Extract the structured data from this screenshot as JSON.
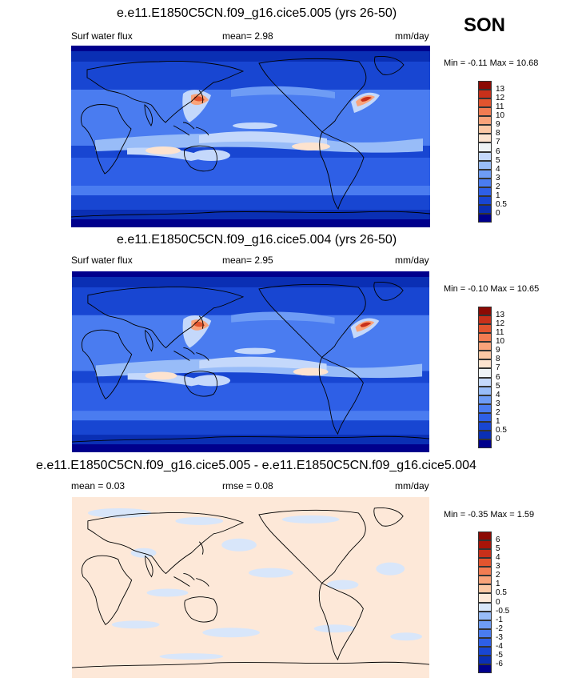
{
  "season": "SON",
  "panels": [
    {
      "title": "e.e11.E1850C5CN.f09_g16.cice5.005 (yrs 26-50)",
      "left_label": "Surf water flux",
      "mid_label": "mean=  2.98",
      "units": "mm/day",
      "minmax": "Min =  -0.11 Max =  10.68"
    },
    {
      "title": "e.e11.E1850C5CN.f09_g16.cice5.004 (yrs 26-50)",
      "left_label": "Surf water flux",
      "mid_label": "mean=  2.95",
      "units": "mm/day",
      "minmax": "Min =  -0.10 Max =  10.65"
    },
    {
      "title": "e.e11.E1850C5CN.f09_g16.cice5.005 - e.e11.E1850C5CN.f09_g16.cice5.004",
      "left_label": "mean =  0.03",
      "mid_label": "rmse =  0.08",
      "units": "mm/day",
      "minmax": "Min =  -0.35 Max =  1.59"
    }
  ],
  "chart_data": [
    {
      "type": "heatmap",
      "title": "e.e11.E1850C5CN.f09_g16.cice5.005 (yrs 26-50)",
      "variable": "Surf water flux",
      "units": "mm/day",
      "mean": 2.98,
      "min": -0.11,
      "max": 10.68,
      "colorbar": {
        "levels": [
          "0",
          "0.5",
          "1",
          "2",
          "3",
          "4",
          "5",
          "6",
          "7",
          "8",
          "9",
          "10",
          "11",
          "12",
          "13"
        ],
        "colors": [
          "#00008c",
          "#0a2fb4",
          "#1846d2",
          "#2e5fe6",
          "#4a7cf0",
          "#6e9cf5",
          "#98bcf8",
          "#c4d8fb",
          "#eef3f6",
          "#fde3cf",
          "#fcc8a5",
          "#f9a37a",
          "#f27c52",
          "#e2542e",
          "#c8301a",
          "#8c0a04"
        ]
      }
    },
    {
      "type": "heatmap",
      "title": "e.e11.E1850C5CN.f09_g16.cice5.004 (yrs 26-50)",
      "variable": "Surf water flux",
      "units": "mm/day",
      "mean": 2.95,
      "min": -0.1,
      "max": 10.65,
      "colorbar": {
        "levels": [
          "0",
          "0.5",
          "1",
          "2",
          "3",
          "4",
          "5",
          "6",
          "7",
          "8",
          "9",
          "10",
          "11",
          "12",
          "13"
        ],
        "colors": [
          "#00008c",
          "#0a2fb4",
          "#1846d2",
          "#2e5fe6",
          "#4a7cf0",
          "#6e9cf5",
          "#98bcf8",
          "#c4d8fb",
          "#eef3f6",
          "#fde3cf",
          "#fcc8a5",
          "#f9a37a",
          "#f27c52",
          "#e2542e",
          "#c8301a",
          "#8c0a04"
        ]
      }
    },
    {
      "type": "heatmap",
      "title": "e.e11.E1850C5CN.f09_g16.cice5.005 - e.e11.E1850C5CN.f09_g16.cice5.004",
      "units": "mm/day",
      "mean": 0.03,
      "rmse": 0.08,
      "min": -0.35,
      "max": 1.59,
      "colorbar": {
        "levels": [
          "-6",
          "-5",
          "-4",
          "-3",
          "-2",
          "-1",
          "-0.5",
          "0",
          "0.5",
          "1",
          "2",
          "3",
          "4",
          "5",
          "6"
        ],
        "colors": [
          "#00008c",
          "#0a2fb4",
          "#1846d2",
          "#2e5fe6",
          "#4a7cf0",
          "#6e9cf5",
          "#98bcf8",
          "#d8e6fa",
          "#fde8d8",
          "#fcc8a5",
          "#f9a37a",
          "#f27c52",
          "#e2542e",
          "#c8301a",
          "#a81408",
          "#8c0a04"
        ]
      }
    }
  ]
}
